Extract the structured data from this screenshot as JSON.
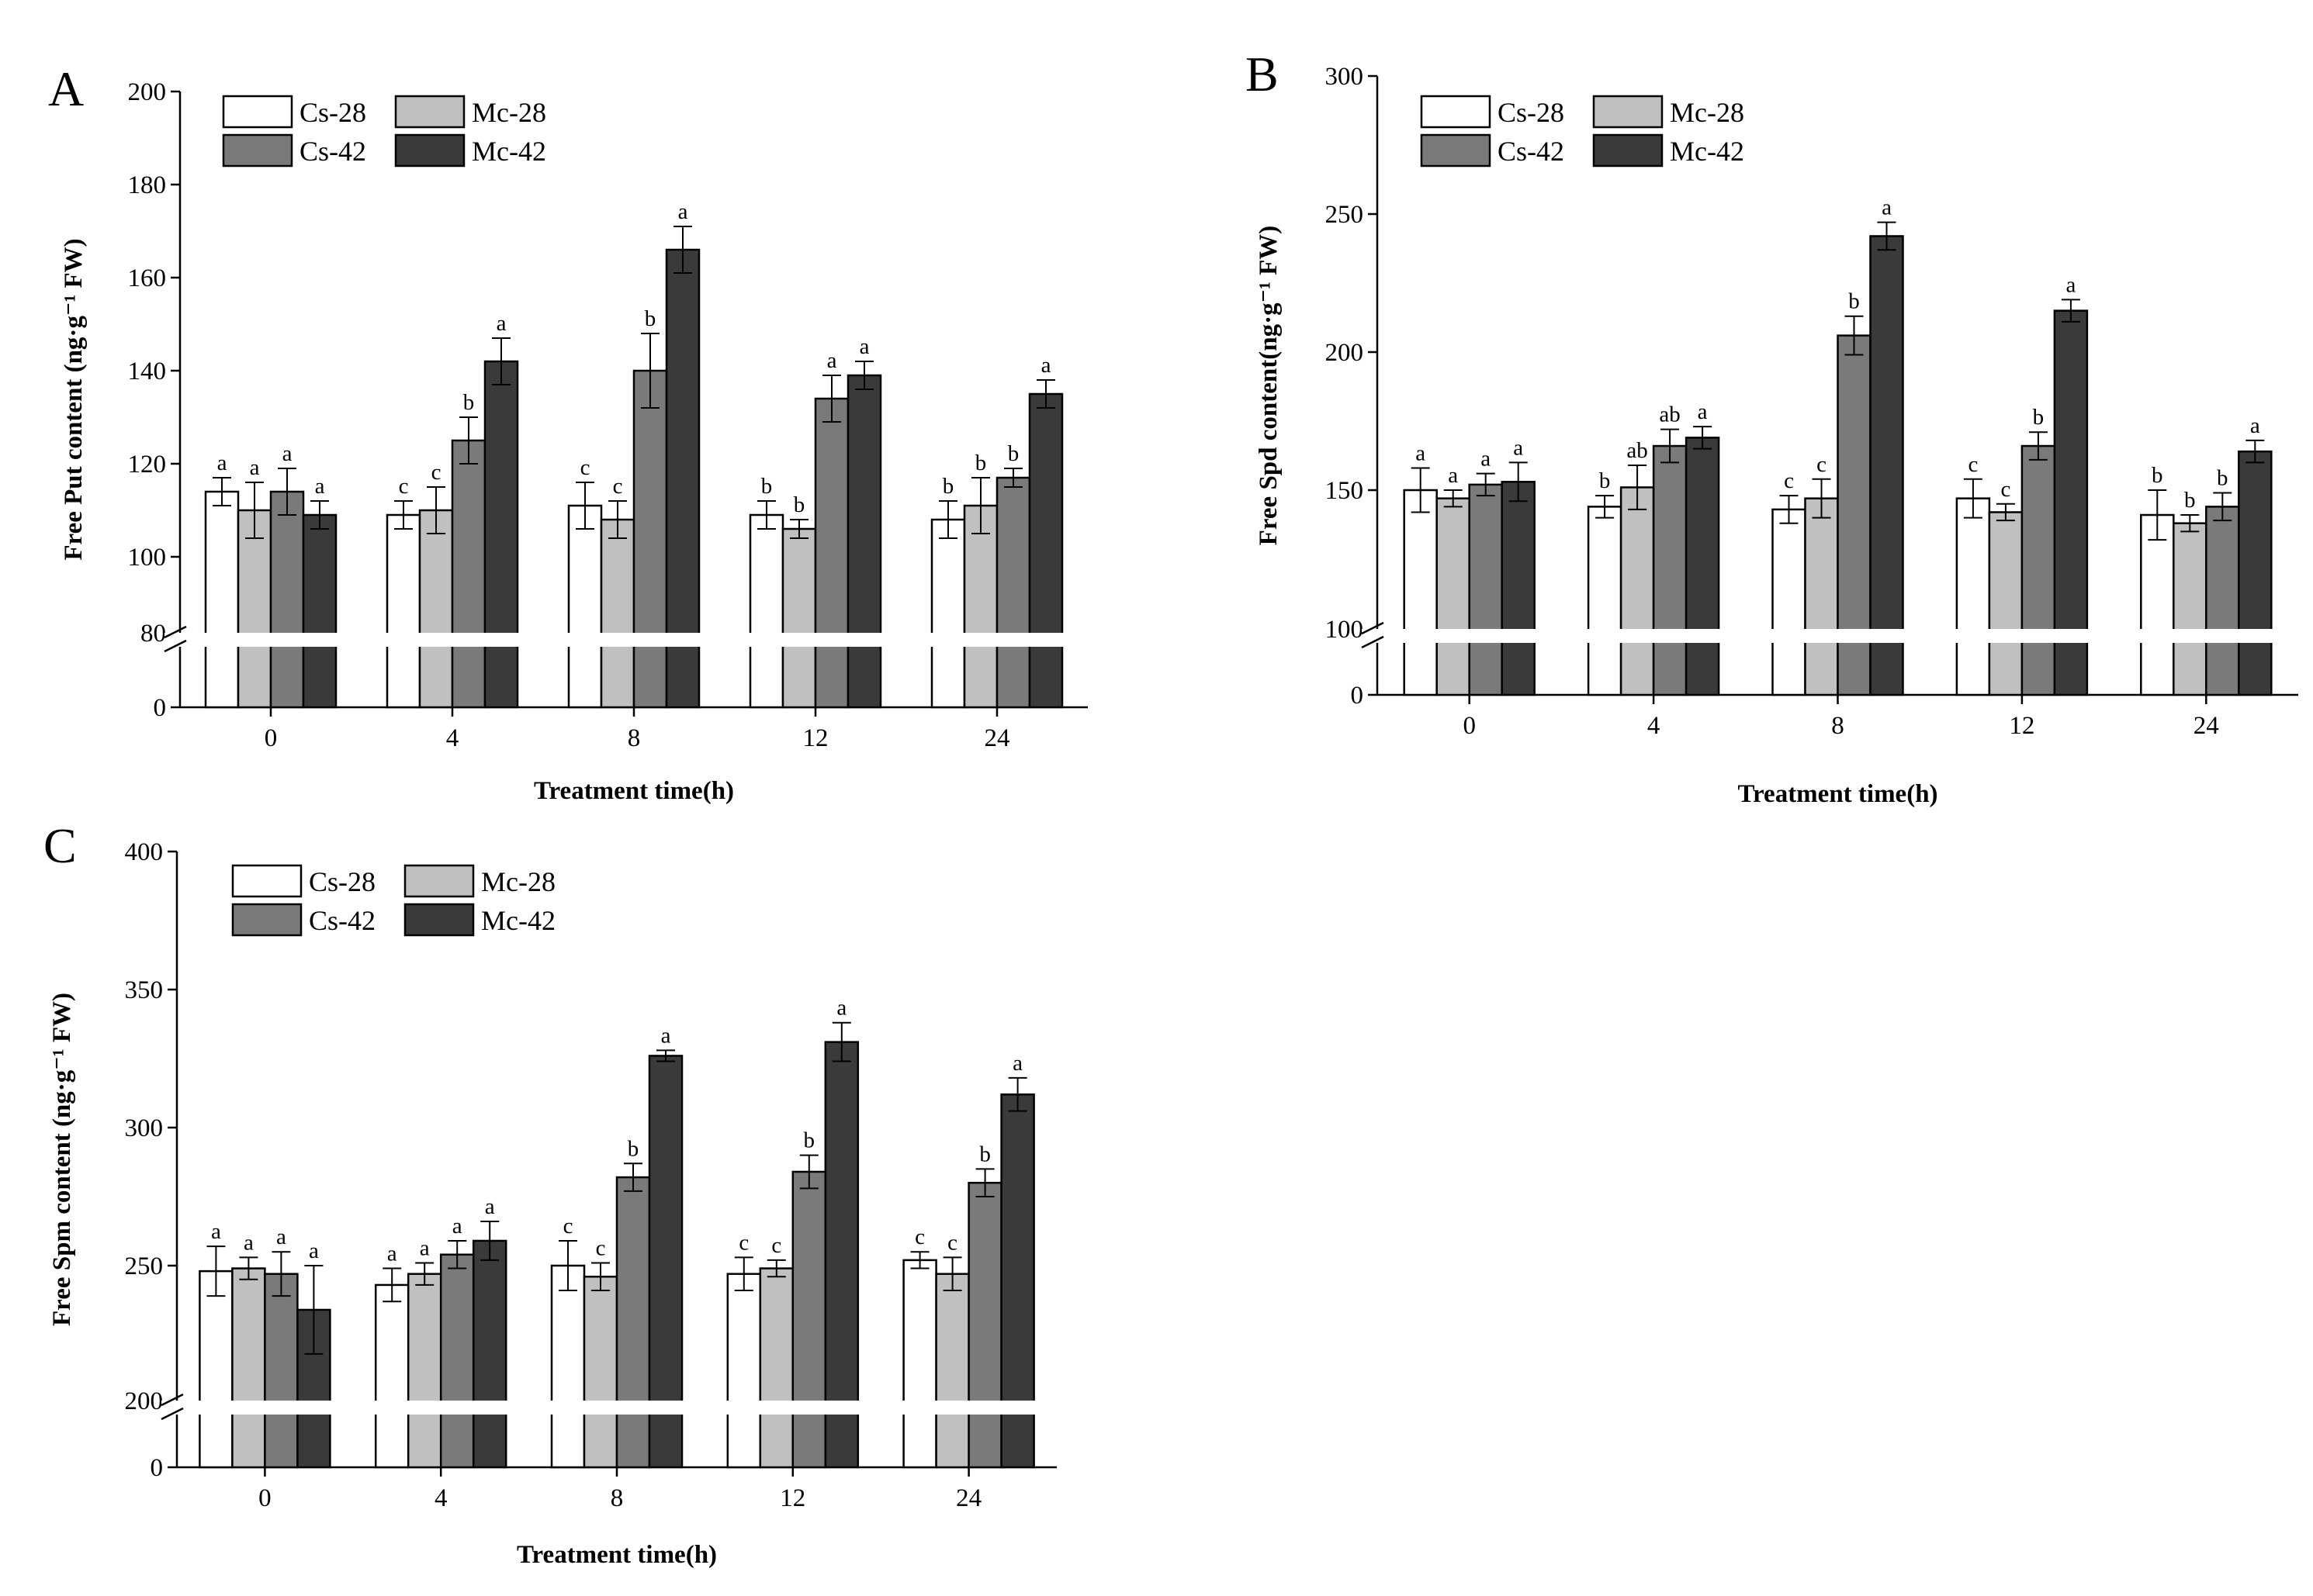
{
  "chart_data": [
    {
      "type": "bar",
      "panel": "A",
      "title": "",
      "xlabel": "Treatment time(h)",
      "ylabel": "Free Put content (ng·g⁻¹ FW)",
      "ylim": [
        80,
        200
      ],
      "y_ticks": [
        100,
        120,
        140,
        160,
        180,
        200
      ],
      "axis_break": {
        "bottom_tick": 0,
        "break_label": 80
      },
      "categories": [
        "0",
        "4",
        "8",
        "12",
        "24"
      ],
      "legend_position": "top-left",
      "series": [
        {
          "name": "Cs-28",
          "values": [
            114,
            109,
            111,
            109,
            108
          ],
          "errors": [
            3,
            3,
            5,
            3,
            4
          ],
          "letters": [
            "a",
            "c",
            "c",
            "b",
            "b"
          ]
        },
        {
          "name": "Mc-28",
          "values": [
            110,
            110,
            108,
            106,
            111
          ],
          "errors": [
            6,
            5,
            4,
            2,
            6
          ],
          "letters": [
            "a",
            "c",
            "c",
            "b",
            "b"
          ]
        },
        {
          "name": "Cs-42",
          "values": [
            114,
            125,
            140,
            134,
            117
          ],
          "errors": [
            5,
            5,
            8,
            5,
            2
          ],
          "letters": [
            "a",
            "b",
            "b",
            "a",
            "b"
          ]
        },
        {
          "name": "Mc-42",
          "values": [
            109,
            142,
            166,
            139,
            135
          ],
          "errors": [
            3,
            5,
            5,
            3,
            3
          ],
          "letters": [
            "a",
            "a",
            "a",
            "a",
            "a"
          ]
        }
      ]
    },
    {
      "type": "bar",
      "panel": "B",
      "title": "",
      "xlabel": "Treatment time(h)",
      "ylabel": "Free Spd content(ng·g⁻¹ FW)",
      "ylim": [
        100,
        300
      ],
      "y_ticks": [
        150,
        200,
        250,
        300
      ],
      "axis_break": {
        "bottom_tick": 0,
        "break_label": 100
      },
      "categories": [
        "0",
        "4",
        "8",
        "12",
        "24"
      ],
      "legend_position": "top-left",
      "series": [
        {
          "name": "Cs-28",
          "values": [
            150,
            144,
            143,
            147,
            141
          ],
          "errors": [
            8,
            4,
            5,
            7,
            9
          ],
          "letters": [
            "a",
            "b",
            "c",
            "c",
            "b"
          ]
        },
        {
          "name": "Mc-28",
          "values": [
            147,
            151,
            147,
            142,
            138
          ],
          "errors": [
            3,
            8,
            7,
            3,
            3
          ],
          "letters": [
            "a",
            "ab",
            "c",
            "c",
            "b"
          ]
        },
        {
          "name": "Cs-42",
          "values": [
            152,
            166,
            206,
            166,
            144
          ],
          "errors": [
            4,
            6,
            7,
            5,
            5
          ],
          "letters": [
            "a",
            "ab",
            "b",
            "b",
            "b"
          ]
        },
        {
          "name": "Mc-42",
          "values": [
            153,
            169,
            242,
            215,
            164
          ],
          "errors": [
            7,
            4,
            5,
            4,
            4
          ],
          "letters": [
            "a",
            "a",
            "a",
            "a",
            "a"
          ]
        }
      ]
    },
    {
      "type": "bar",
      "panel": "C",
      "title": "",
      "xlabel": "Treatment time(h)",
      "ylabel": "Free Spm content (ng·g⁻¹ FW)",
      "ylim": [
        200,
        400
      ],
      "y_ticks": [
        250,
        300,
        350,
        400
      ],
      "axis_break": {
        "bottom_tick": 0,
        "break_label": 200
      },
      "categories": [
        "0",
        "4",
        "8",
        "12",
        "24"
      ],
      "legend_position": "top-left",
      "series": [
        {
          "name": "Cs-28",
          "values": [
            248,
            243,
            250,
            247,
            252
          ],
          "errors": [
            9,
            6,
            9,
            6,
            3
          ],
          "letters": [
            "a",
            "a",
            "c",
            "c",
            "c"
          ]
        },
        {
          "name": "Mc-28",
          "values": [
            249,
            247,
            246,
            249,
            247
          ],
          "errors": [
            4,
            4,
            5,
            3,
            6
          ],
          "letters": [
            "a",
            "a",
            "c",
            "c",
            "c"
          ]
        },
        {
          "name": "Cs-42",
          "values": [
            247,
            254,
            282,
            284,
            280
          ],
          "errors": [
            8,
            5,
            5,
            6,
            5
          ],
          "letters": [
            "a",
            "a",
            "b",
            "b",
            "b"
          ]
        },
        {
          "name": "Mc-42",
          "values": [
            234,
            259,
            326,
            331,
            312
          ],
          "errors": [
            16,
            7,
            2,
            7,
            6
          ],
          "letters": [
            "a",
            "a",
            "a",
            "a",
            "a"
          ]
        }
      ]
    }
  ],
  "colors": {
    "Cs-28": "#ffffff",
    "Mc-28": "#c0c0c0",
    "Cs-42": "#7a7a7a",
    "Mc-42": "#3a3a3a",
    "axis": "#000000"
  }
}
